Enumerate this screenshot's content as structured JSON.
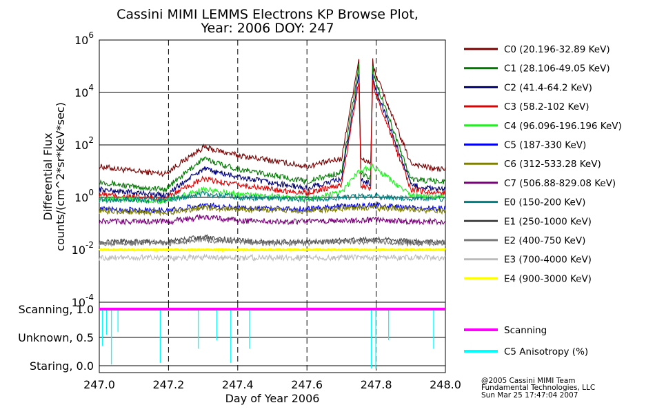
{
  "title_line1": "Cassini MIMI LEMMS Electrons KP Browse Plot,",
  "title_line2": "Year: 2006 DOY: 247",
  "credits": [
    "@2005 Cassini MIMI Team",
    "Fundamental Technologies, LLC",
    "Sun Mar 25 17:47:04 2007"
  ],
  "colors": {
    "C0": "#7a0000",
    "C1": "#007a00",
    "C2": "#00007a",
    "C3": "#e00000",
    "C4": "#22ee22",
    "C5": "#0000ee",
    "C6": "#808000",
    "C7": "#7a007a",
    "E0": "#008080",
    "E1": "#444444",
    "E2": "#777777",
    "E3": "#bbbbbb",
    "E4": "#ffff00",
    "Scanning": "#ff00ff",
    "Anisotropy": "#00ffff"
  },
  "chart_data": [
    {
      "type": "line",
      "ylabel_lines": [
        "Differential Flux",
        "counts/(cm^2*sr*KeV*sec)"
      ],
      "y_scale": "log",
      "ylim": [
        0.0001,
        1000000
      ],
      "y_ticks": [
        {
          "value": 1000000,
          "base": "10",
          "exp": "6"
        },
        {
          "value": 10000,
          "base": "10",
          "exp": "4"
        },
        {
          "value": 100,
          "base": "10",
          "exp": "2"
        },
        {
          "value": 1,
          "base": "10",
          "exp": "0"
        },
        {
          "value": 0.01,
          "base": "10",
          "exp": "-2"
        },
        {
          "value": 0.0001,
          "base": "10",
          "exp": "-4"
        }
      ],
      "xlim": [
        247.0,
        248.0
      ],
      "x_dashed_gridlines": [
        247.2,
        247.4,
        247.6,
        247.8
      ],
      "legend_position": "right",
      "series": [
        {
          "key": "C0",
          "name": "C0 (20.196-32.89 KeV)",
          "x": [
            247.0,
            247.1,
            247.19,
            247.3,
            247.4,
            247.5,
            247.6,
            247.7,
            247.75,
            247.79,
            247.9,
            247.97,
            248.0
          ],
          "y": [
            15,
            10,
            8,
            80,
            40,
            25,
            15,
            30,
            100000,
            200000,
            20,
            12,
            12
          ]
        },
        {
          "key": "C1",
          "name": "C1 (28.106-49.05 KeV)",
          "x": [
            247.0,
            247.1,
            247.19,
            247.3,
            247.4,
            247.5,
            247.6,
            247.7,
            247.75,
            247.79,
            247.9,
            247.97,
            248.0
          ],
          "y": [
            4,
            2.5,
            2,
            30,
            12,
            7,
            4,
            9,
            60000,
            100000,
            5,
            4,
            4
          ]
        },
        {
          "key": "C2",
          "name": "C2 (41.4-64.2 KeV)",
          "x": [
            247.0,
            247.1,
            247.19,
            247.3,
            247.4,
            247.5,
            247.6,
            247.7,
            247.75,
            247.79,
            247.9,
            247.97,
            248.0
          ],
          "y": [
            2,
            1.5,
            1.2,
            12,
            6,
            3.5,
            2.2,
            5,
            30000,
            50000,
            3,
            2,
            2
          ]
        },
        {
          "key": "C3",
          "name": "C3 (58.2-102 KeV)",
          "x": [
            247.0,
            247.1,
            247.19,
            247.3,
            247.4,
            247.5,
            247.6,
            247.7,
            247.75,
            247.79,
            247.9,
            247.97,
            248.0
          ],
          "y": [
            1.3,
            1,
            0.9,
            5,
            3,
            2,
            1.5,
            3,
            20000,
            30000,
            2,
            1.5,
            1.5
          ]
        },
        {
          "key": "C4",
          "name": "C4 (96.096-196.196 KeV)",
          "x": [
            247.0,
            247.1,
            247.19,
            247.3,
            247.4,
            247.5,
            247.6,
            247.7,
            247.75,
            247.79,
            247.9,
            247.97,
            248.0
          ],
          "y": [
            0.9,
            0.8,
            0.7,
            2,
            1.3,
            1.1,
            0.9,
            1.5,
            10,
            15,
            1.2,
            1,
            1
          ]
        },
        {
          "key": "C5",
          "name": "C5 (187-330 KeV)",
          "x": [
            247.0,
            247.1,
            247.2,
            247.3,
            247.4,
            247.5,
            247.6,
            247.7,
            247.8,
            247.9,
            248.0
          ],
          "y": [
            0.35,
            0.33,
            0.32,
            0.5,
            0.4,
            0.38,
            0.36,
            0.45,
            0.5,
            0.4,
            0.38
          ]
        },
        {
          "key": "C6",
          "name": "C6 (312-533.28 KeV)",
          "x": [
            247.0,
            247.1,
            247.2,
            247.3,
            247.4,
            247.5,
            247.6,
            247.7,
            247.8,
            247.9,
            248.0
          ],
          "y": [
            0.3,
            0.28,
            0.27,
            0.4,
            0.35,
            0.33,
            0.3,
            0.38,
            0.4,
            0.33,
            0.3
          ]
        },
        {
          "key": "C7",
          "name": "C7 (506.88-829.08 KeV)",
          "x": [
            247.0,
            247.1,
            247.2,
            247.3,
            247.4,
            247.5,
            247.6,
            247.7,
            247.8,
            247.9,
            248.0
          ],
          "y": [
            0.12,
            0.12,
            0.12,
            0.18,
            0.13,
            0.12,
            0.12,
            0.13,
            0.14,
            0.12,
            0.12
          ]
        },
        {
          "key": "E0",
          "name": "E0 (150-200 KeV)",
          "x": [
            247.0,
            247.1,
            247.2,
            247.3,
            247.4,
            247.5,
            247.6,
            247.7,
            247.8,
            247.9,
            248.0
          ],
          "y": [
            0.8,
            0.8,
            0.8,
            1.4,
            1,
            0.9,
            0.85,
            1,
            1.1,
            0.9,
            0.85
          ]
        },
        {
          "key": "E1",
          "name": "E1 (250-1000 KeV)",
          "x": [
            247.0,
            247.1,
            247.2,
            247.3,
            247.4,
            247.5,
            247.6,
            247.7,
            247.8,
            247.9,
            248.0
          ],
          "y": [
            0.02,
            0.02,
            0.02,
            0.03,
            0.022,
            0.02,
            0.02,
            0.022,
            0.024,
            0.02,
            0.02
          ]
        },
        {
          "key": "E2",
          "name": "E2 (400-750 KeV)",
          "x": [
            247.0,
            247.1,
            247.2,
            247.3,
            247.4,
            247.5,
            247.6,
            247.7,
            247.8,
            247.9,
            248.0
          ],
          "y": [
            0.018,
            0.018,
            0.018,
            0.025,
            0.02,
            0.018,
            0.018,
            0.02,
            0.021,
            0.018,
            0.018
          ]
        },
        {
          "key": "E3",
          "name": "E3 (700-4000 KeV)",
          "x": [
            247.0,
            247.1,
            247.2,
            247.3,
            247.4,
            247.5,
            247.6,
            247.7,
            247.8,
            247.9,
            248.0
          ],
          "y": [
            0.005,
            0.005,
            0.005,
            0.005,
            0.005,
            0.005,
            0.005,
            0.005,
            0.005,
            0.005,
            0.005
          ]
        },
        {
          "key": "E4",
          "name": "E4 (900-3000 KeV)",
          "x": [
            247.0,
            248.0
          ],
          "y": [
            0.01,
            0.01
          ]
        }
      ]
    },
    {
      "type": "line",
      "xlabel": "Day of Year 2006",
      "xlim": [
        247.0,
        248.0
      ],
      "x_ticks": [
        "247.0",
        "247.2",
        "247.4",
        "247.6",
        "247.8",
        "248.0"
      ],
      "x_tick_values": [
        247.0,
        247.2,
        247.4,
        247.6,
        247.8,
        248.0
      ],
      "ylim": [
        0.0,
        1.0
      ],
      "y_ticks": [
        {
          "value": 1.0,
          "label": "Scanning, 1.0"
        },
        {
          "value": 0.5,
          "label": "Unknown, 0.5"
        },
        {
          "value": 0.0,
          "label": "Staring, 0.0"
        }
      ],
      "series": [
        {
          "key": "Scanning",
          "name": "Scanning",
          "x": [
            247.0,
            248.0
          ],
          "y": [
            1.0,
            1.0
          ]
        },
        {
          "key": "Anisotropy",
          "name": "C5 Anisotropy (%)",
          "spikes": [
            {
              "x": 247.009,
              "y": 0.35
            },
            {
              "x": 247.021,
              "y": 0.55
            },
            {
              "x": 247.035,
              "y": 0.02
            },
            {
              "x": 247.054,
              "y": 0.6
            },
            {
              "x": 247.176,
              "y": 0.05
            },
            {
              "x": 247.286,
              "y": 0.3
            },
            {
              "x": 247.339,
              "y": 0.45
            },
            {
              "x": 247.38,
              "y": 0.05
            },
            {
              "x": 247.434,
              "y": 0.3
            },
            {
              "x": 247.786,
              "y": -0.05
            },
            {
              "x": 247.799,
              "y": -0.05
            },
            {
              "x": 247.836,
              "y": 0.45
            },
            {
              "x": 247.966,
              "y": 0.3
            }
          ]
        }
      ]
    }
  ]
}
